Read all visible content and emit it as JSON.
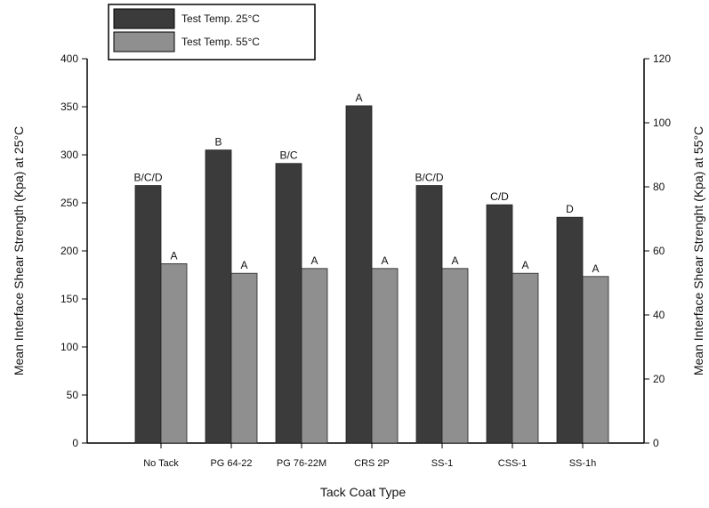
{
  "chart_data": {
    "type": "bar",
    "categories": [
      "No Tack",
      "PG 64-22",
      "PG 76-22M",
      "CRS 2P",
      "SS-1",
      "CSS-1",
      "SS-1h"
    ],
    "series": [
      {
        "name": "Test Temp. 25°C",
        "axis": "left",
        "color": "#3b3b3b",
        "values": [
          268,
          305,
          291,
          351,
          268,
          248,
          235
        ],
        "labels": [
          "B/C/D",
          "B",
          "B/C",
          "A",
          "B/C/D",
          "C/D",
          "D"
        ]
      },
      {
        "name": "Test Temp. 55°C",
        "axis": "right",
        "color": "#8f8f8f",
        "values": [
          56,
          53,
          54.5,
          54.5,
          54.5,
          53,
          52
        ],
        "labels": [
          "A",
          "A",
          "A",
          "A",
          "A",
          "A",
          "A"
        ]
      }
    ],
    "xlabel": "Tack Coat Type",
    "ylabel_left": "Mean Interface Shear Strength (Kpa) at 25°C",
    "ylabel_right": "Mean Interface Shear Strenght (Kpa) at 55°C",
    "ylim_left": [
      0,
      400
    ],
    "yticks_left": [
      "0",
      "50",
      "100",
      "150",
      "200",
      "250",
      "300",
      "350",
      "400"
    ],
    "ylim_right": [
      0,
      120
    ],
    "yticks_right": [
      "0",
      "20",
      "40",
      "60",
      "80",
      "100",
      "120"
    ],
    "grid": false,
    "legend_position": "top-left"
  }
}
